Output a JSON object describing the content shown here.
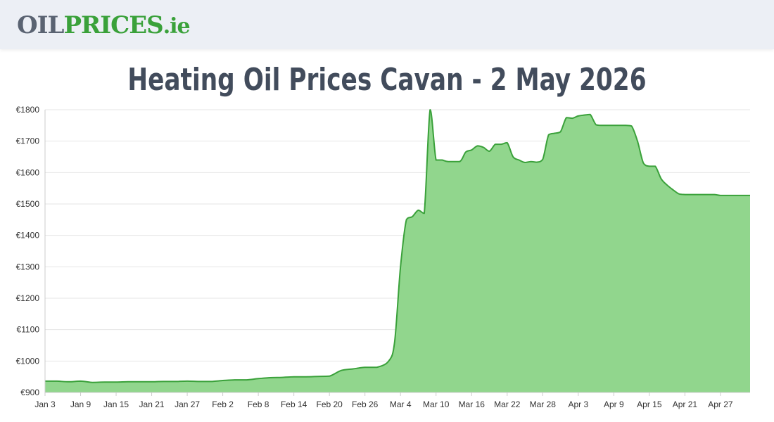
{
  "header": {
    "logo": {
      "part1": "OIL",
      "part2": "PRICES",
      "part3": ".ie"
    }
  },
  "page_title": "Heating Oil Prices Cavan - 2 May 2026",
  "colors": {
    "line": "#3aa13a",
    "fill": "#91d68d",
    "grid": "#e6e6e6",
    "header_bg": "#eceff5",
    "title": "#424c5c"
  },
  "chart_data": {
    "type": "area",
    "title": "",
    "xlabel": "",
    "ylabel": "",
    "ylim": [
      900,
      1800
    ],
    "y_ticks": [
      900,
      1000,
      1100,
      1200,
      1300,
      1400,
      1500,
      1600,
      1700,
      1800
    ],
    "y_tick_labels": [
      "€900",
      "€1000",
      "€1100",
      "€1200",
      "€1300",
      "€1400",
      "€1500",
      "€1600",
      "€1700",
      "€1800"
    ],
    "x_range": [
      "2026-01-03",
      "2026-05-02"
    ],
    "x_ticks": [
      "2026-01-03",
      "2026-01-09",
      "2026-01-15",
      "2026-01-21",
      "2026-01-27",
      "2026-02-02",
      "2026-02-08",
      "2026-02-14",
      "2026-02-20",
      "2026-02-26",
      "2026-03-04",
      "2026-03-10",
      "2026-03-16",
      "2026-03-22",
      "2026-03-28",
      "2026-04-03",
      "2026-04-09",
      "2026-04-15",
      "2026-04-21",
      "2026-04-27"
    ],
    "x_tick_labels": [
      "Jan 3",
      "Jan 9",
      "Jan 15",
      "Jan 21",
      "Jan 27",
      "Feb 2",
      "Feb 8",
      "Feb 14",
      "Feb 20",
      "Feb 26",
      "Mar 4",
      "Mar 10",
      "Mar 16",
      "Mar 22",
      "Mar 28",
      "Apr 3",
      "Apr 9",
      "Apr 15",
      "Apr 21",
      "Apr 27"
    ],
    "grid": true,
    "legend": "none",
    "series": [
      {
        "x": [
          "2026-01-03",
          "2026-01-05",
          "2026-01-07",
          "2026-01-09",
          "2026-01-11",
          "2026-01-13",
          "2026-01-15",
          "2026-01-17",
          "2026-01-19",
          "2026-01-21",
          "2026-01-23",
          "2026-01-25",
          "2026-01-27",
          "2026-01-29",
          "2026-01-31",
          "2026-02-02",
          "2026-02-04",
          "2026-02-06",
          "2026-02-08",
          "2026-02-10",
          "2026-02-12",
          "2026-02-14",
          "2026-02-16",
          "2026-02-18",
          "2026-02-20",
          "2026-02-22",
          "2026-02-24",
          "2026-02-26",
          "2026-02-28",
          "2026-03-02",
          "2026-03-03",
          "2026-03-04",
          "2026-03-05",
          "2026-03-06",
          "2026-03-07",
          "2026-03-08",
          "2026-03-09",
          "2026-03-10",
          "2026-03-11",
          "2026-03-12",
          "2026-03-14",
          "2026-03-15",
          "2026-03-16",
          "2026-03-17",
          "2026-03-18",
          "2026-03-19",
          "2026-03-20",
          "2026-03-21",
          "2026-03-22",
          "2026-03-23",
          "2026-03-24",
          "2026-03-25",
          "2026-03-26",
          "2026-03-27",
          "2026-03-28",
          "2026-03-29",
          "2026-03-30",
          "2026-03-31",
          "2026-04-01",
          "2026-04-02",
          "2026-04-03",
          "2026-04-04",
          "2026-04-05",
          "2026-04-06",
          "2026-04-07",
          "2026-04-08",
          "2026-04-09",
          "2026-04-10",
          "2026-04-11",
          "2026-04-12",
          "2026-04-13",
          "2026-04-14",
          "2026-04-15",
          "2026-04-16",
          "2026-04-17",
          "2026-04-18",
          "2026-04-19",
          "2026-04-20",
          "2026-04-21",
          "2026-04-22",
          "2026-04-23",
          "2026-04-24",
          "2026-04-25",
          "2026-04-26",
          "2026-04-27",
          "2026-04-28",
          "2026-04-29",
          "2026-04-30",
          "2026-05-01",
          "2026-05-02"
        ],
        "y": [
          936,
          936,
          934,
          936,
          932,
          933,
          933,
          934,
          934,
          934,
          935,
          935,
          936,
          935,
          935,
          938,
          940,
          940,
          944,
          947,
          948,
          950,
          950,
          951,
          952,
          970,
          975,
          980,
          980,
          1000,
          1060,
          1300,
          1450,
          1460,
          1480,
          1470,
          1800,
          1640,
          1640,
          1635,
          1635,
          1665,
          1672,
          1685,
          1680,
          1668,
          1690,
          1690,
          1695,
          1650,
          1640,
          1632,
          1635,
          1633,
          1642,
          1720,
          1725,
          1730,
          1775,
          1773,
          1780,
          1783,
          1785,
          1752,
          1750,
          1750,
          1750,
          1750,
          1750,
          1748,
          1700,
          1630,
          1620,
          1620,
          1580,
          1560,
          1545,
          1532,
          1530,
          1530,
          1530,
          1530,
          1530,
          1530,
          1527,
          1527,
          1527,
          1527,
          1527,
          1527
        ]
      }
    ]
  }
}
